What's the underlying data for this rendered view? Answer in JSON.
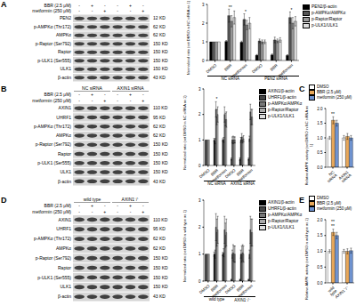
{
  "chart_data": [
    {
      "type": "bar",
      "ylabel": "Normalized ratio (set DMSO in NC siRNA as 1)",
      "categories": [
        "DMSO",
        "BBR",
        "metformin",
        "DMSO",
        "BBR",
        "metformin"
      ],
      "groups": [
        {
          "label": "NC siRNA",
          "span": 3
        },
        {
          "label": "PEN2 siRNA",
          "span": 3
        }
      ],
      "series": [
        {
          "name": "PEN2/β-actin",
          "color": "#000000",
          "values": [
            1,
            1.02,
            0.98,
            0.28,
            0.3,
            0.27
          ],
          "errors": [
            0,
            0.05,
            0.06,
            0.04,
            0.05,
            0.04
          ]
        },
        {
          "name": "p-AMPKα/AMPKα",
          "color": "#555555",
          "values": [
            1,
            2.4,
            2.2,
            1.05,
            1.1,
            2.3
          ],
          "errors": [
            0,
            0.35,
            0.3,
            0.1,
            0.15,
            0.3
          ]
        },
        {
          "name": "p-Raptor/Raptor",
          "color": "#999999",
          "values": [
            1,
            2.1,
            1.9,
            1.0,
            1.05,
            2.0
          ],
          "errors": [
            0,
            0.3,
            0.25,
            0.1,
            0.1,
            0.3
          ]
        },
        {
          "name": "p-ULK1/ULK1",
          "color": "#dddddd",
          "values": [
            1,
            2.3,
            2.0,
            1.0,
            1.1,
            2.1
          ],
          "errors": [
            0,
            0.35,
            0.3,
            0.1,
            0.12,
            0.25
          ]
        }
      ],
      "ylim": [
        0,
        3
      ],
      "yticks": [
        0,
        1,
        2,
        3
      ],
      "legend": "right",
      "annotations": [
        {
          "text": "**",
          "category": 1,
          "y": 2.85
        },
        {
          "text": "*",
          "category": 2,
          "y": 2.6
        },
        {
          "text": "*",
          "category": 5,
          "y": 2.7
        }
      ]
    },
    {
      "type": "bar",
      "ylabel": "Normalized ratio (set DMSO in NC siRNA as 1)",
      "categories": [
        "DMSO",
        "BBR",
        "metformin",
        "DMSO",
        "BBR",
        "metformin"
      ],
      "groups": [
        {
          "label": "NC siRNA",
          "span": 3
        },
        {
          "label": "AXIN1 siRNA",
          "span": 3
        }
      ],
      "series": [
        {
          "name": "AXIN1/β-actin",
          "color": "#000000",
          "values": [
            1,
            1.0,
            1.0,
            0.25,
            0.25,
            0.25
          ],
          "errors": [
            0,
            0.06,
            0.05,
            0.04,
            0.05,
            0.04
          ]
        },
        {
          "name": "UHRF1/β-actin",
          "color": "#444444",
          "values": [
            1,
            0.95,
            1.0,
            1.0,
            1.0,
            1.05
          ],
          "errors": [
            0,
            0.1,
            0.1,
            0.12,
            0.1,
            0.1
          ]
        },
        {
          "name": "p-AMPKα/AMPKα",
          "color": "#777777",
          "values": [
            1,
            2.2,
            2.0,
            1.0,
            1.1,
            2.1
          ],
          "errors": [
            0,
            0.3,
            0.3,
            0.15,
            0.15,
            0.3
          ]
        },
        {
          "name": "p-Raptor/Raptor",
          "color": "#aaaaaa",
          "values": [
            1,
            1.9,
            1.8,
            1.0,
            1.0,
            1.9
          ],
          "errors": [
            0,
            0.3,
            0.25,
            0.12,
            0.12,
            0.3
          ]
        },
        {
          "name": "p-ULK1/ULK1",
          "color": "#dddddd",
          "values": [
            1,
            2.0,
            1.8,
            1.0,
            1.05,
            1.9
          ],
          "errors": [
            0,
            0.3,
            0.3,
            0.12,
            0.12,
            0.3
          ]
        }
      ],
      "ylim": [
        0,
        3
      ],
      "yticks": [
        0,
        1,
        2,
        3
      ],
      "legend": "right",
      "annotations": [
        {
          "text": "*",
          "category": 1,
          "y": 2.6
        }
      ]
    },
    {
      "type": "bar",
      "ylabel": "Relative AMPK activity (set DMSO in NC siRNA as 1)",
      "categories": [
        "NC siRNA",
        "AXIN1 siRNA"
      ],
      "series": [
        {
          "name": "DMSO",
          "color": "#ffffff",
          "values": [
            1,
            1
          ],
          "errors": [
            0.05,
            0.08
          ]
        },
        {
          "name": "BBR (2.5 μM)",
          "color": "#e8a85a",
          "values": [
            1.6,
            1.05
          ],
          "errors": [
            0.12,
            0.1
          ]
        },
        {
          "name": "metformin (250 μM)",
          "color": "#6f93d0",
          "values": [
            1.5,
            1.0
          ],
          "errors": [
            0.1,
            0.08
          ]
        }
      ],
      "ylim": [
        0,
        2
      ],
      "yticks": [
        {
          "value": 0,
          "label": "0.0"
        },
        {
          "value": 0.5,
          "label": "0.5"
        },
        {
          "value": 1,
          "label": "1.0"
        },
        {
          "value": 1.5,
          "label": "1.5"
        },
        {
          "value": 2,
          "label": "2.0"
        }
      ],
      "legend": "top",
      "annotations": [
        {
          "text": "**",
          "category": 0,
          "y": 1.8
        }
      ]
    },
    {
      "type": "bar",
      "ylabel": "Normalized ratio (set DMSO in wild type as 1)",
      "categories": [
        "DMSO",
        "BBR",
        "metformin",
        "DMSO",
        "BBR",
        "metformin"
      ],
      "groups": [
        {
          "label": "wild type",
          "span": 3
        },
        {
          "label": "AXIN1⁻/⁻",
          "span": 3
        }
      ],
      "series": [
        {
          "name": "AXIN1/β-actin",
          "color": "#000000",
          "values": [
            1,
            1.0,
            1.0,
            0.05,
            0.05,
            0.05
          ],
          "errors": [
            0,
            0.08,
            0.06,
            0.02,
            0.02,
            0.02
          ]
        },
        {
          "name": "UHRF1/β-actin",
          "color": "#444444",
          "values": [
            1,
            1.0,
            1.05,
            1.0,
            1.0,
            1.0
          ],
          "errors": [
            0,
            0.15,
            0.15,
            0.15,
            0.15,
            0.15
          ]
        },
        {
          "name": "p-AMPKα/AMPKα",
          "color": "#777777",
          "values": [
            1,
            2.0,
            1.9,
            1.05,
            1.0,
            1.9
          ],
          "errors": [
            0,
            0.5,
            0.5,
            0.3,
            0.3,
            0.5
          ]
        },
        {
          "name": "p-Raptor/Raptor",
          "color": "#aaaaaa",
          "values": [
            1,
            1.8,
            1.7,
            1.0,
            1.05,
            1.8
          ],
          "errors": [
            0,
            0.5,
            0.45,
            0.3,
            0.3,
            0.5
          ]
        },
        {
          "name": "p-ULK1/ULK1",
          "color": "#dddddd",
          "values": [
            1,
            1.9,
            1.8,
            1.0,
            1.0,
            1.8
          ],
          "errors": [
            0,
            0.5,
            0.5,
            0.3,
            0.3,
            0.5
          ]
        }
      ],
      "ylim": [
        0,
        3
      ],
      "yticks": [
        0,
        1,
        2,
        3
      ],
      "legend": "right",
      "annotations": []
    },
    {
      "type": "bar",
      "ylabel": "Relative AMPK activity (set DMSO in wild type as 1)",
      "categories": [
        "wild type",
        "AXIN1⁻/⁻"
      ],
      "series": [
        {
          "name": "DMSO",
          "color": "#ffffff",
          "values": [
            1,
            1
          ],
          "errors": [
            0.05,
            0.06
          ]
        },
        {
          "name": "BBR (2.5 μM)",
          "color": "#e8a85a",
          "values": [
            1.6,
            1.0
          ],
          "errors": [
            0.1,
            0.08
          ]
        },
        {
          "name": "metformin (250 μM)",
          "color": "#6f93d0",
          "values": [
            1.5,
            1.02
          ],
          "errors": [
            0.1,
            0.08
          ]
        }
      ],
      "ylim": [
        0,
        2
      ],
      "yticks": [
        {
          "value": 0,
          "label": "0.0"
        },
        {
          "value": 0.5,
          "label": "0.5"
        },
        {
          "value": 1,
          "label": "1.0"
        },
        {
          "value": 1.5,
          "label": "1.5"
        },
        {
          "value": 2,
          "label": "2.0"
        }
      ],
      "legend": "top",
      "annotations": [
        {
          "text": "**",
          "category": 0,
          "y": 1.8
        },
        {
          "text": "**",
          "category": 0,
          "y": 1.95
        }
      ]
    }
  ],
  "panels": [
    {
      "label": "A",
      "blot": {
        "treatments": [
          {
            "label": "BBR (2.5 μM)",
            "signs": [
              "-",
              "+",
              "-",
              "-",
              "+",
              "-"
            ]
          },
          {
            "label": "metformin (250 μM)",
            "signs": [
              "-",
              "-",
              "+",
              "-",
              "-",
              "+"
            ]
          }
        ],
        "bands": [
          {
            "label": "PEN2",
            "kd": "12 KD"
          },
          {
            "label": "p-AMPKα (Thr172)",
            "kd": "62 KD"
          },
          {
            "label": "AMPKα",
            "kd": "62 KD"
          },
          {
            "label": "p-Raptor (Ser792)",
            "kd": "150 KD"
          },
          {
            "label": "Raptor",
            "kd": "150 KD"
          },
          {
            "label": "p-ULK1 (Ser555)",
            "kd": "150 KD"
          },
          {
            "label": "ULK1",
            "kd": "150 KD"
          },
          {
            "label": "β-actin",
            "kd": "43 KD"
          }
        ]
      }
    },
    {
      "label": "B",
      "blot": {
        "headers": [
          {
            "label": "NC siRNA",
            "span": 3
          },
          {
            "label": "AXIN1 siRNA",
            "span": 3
          }
        ],
        "treatments": [
          {
            "label": "BBR (2.5 μM)",
            "signs": [
              "-",
              "+",
              "-",
              "-",
              "+",
              "-"
            ]
          },
          {
            "label": "metformin (250 μM)",
            "signs": [
              "-",
              "-",
              "+",
              "-",
              "-",
              "+"
            ]
          }
        ],
        "bands": [
          {
            "label": "AXIN1",
            "kd": "110 KD"
          },
          {
            "label": "UHRF1",
            "kd": "95 KD"
          },
          {
            "label": "p-AMPKα (Thr172)",
            "kd": "62 KD"
          },
          {
            "label": "AMPKα",
            "kd": "62 KD"
          },
          {
            "label": "p-Raptor (Ser792)",
            "kd": "150 KD"
          },
          {
            "label": "Raptor",
            "kd": "150 KD"
          },
          {
            "label": "p-ULK1 (Ser555)",
            "kd": "150 KD"
          },
          {
            "label": "ULK1",
            "kd": "150 KD"
          },
          {
            "label": "β-actin",
            "kd": "43 KD"
          }
        ]
      }
    },
    {
      "label": "C"
    },
    {
      "label": "D",
      "blot": {
        "headers": [
          {
            "label": "wild type",
            "span": 3
          },
          {
            "label": "AXIN1⁻/⁻",
            "span": 3
          }
        ],
        "treatments": [
          {
            "label": "BBR (2.5 μM)",
            "signs": [
              "-",
              "+",
              "-",
              "-",
              "+",
              "-"
            ]
          },
          {
            "label": "metformin (250 μM)",
            "signs": [
              "-",
              "-",
              "+",
              "-",
              "-",
              "+"
            ]
          }
        ],
        "bands": [
          {
            "label": "AXIN1",
            "kd": "110 KD"
          },
          {
            "label": "UHRF1",
            "kd": "95 KD"
          },
          {
            "label": "p-AMPKα (Thr172)",
            "kd": "62 KD"
          },
          {
            "label": "AMPKα",
            "kd": "62 KD"
          },
          {
            "label": "p-Raptor (Ser792)",
            "kd": "150 KD"
          },
          {
            "label": "Raptor",
            "kd": "150 KD"
          },
          {
            "label": "p-ULK1 (Ser555)",
            "kd": "150 KD"
          },
          {
            "label": "ULK1",
            "kd": "150 KD"
          },
          {
            "label": "β-actin",
            "kd": "43 KD"
          }
        ]
      }
    },
    {
      "label": "E"
    }
  ]
}
